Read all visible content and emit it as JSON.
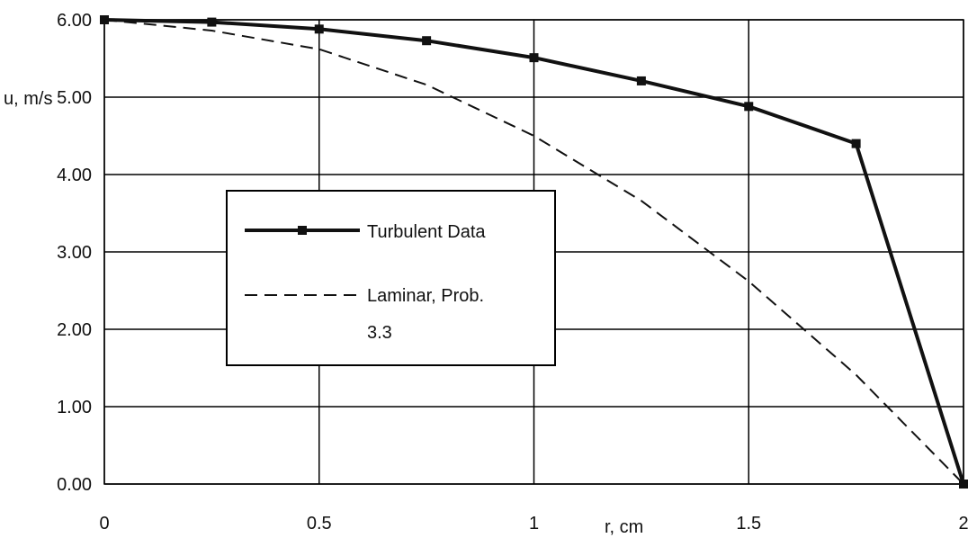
{
  "chart_data": {
    "type": "line",
    "title": "",
    "xlabel": "r, cm",
    "ylabel": "u, m/s",
    "xlim": [
      0,
      2
    ],
    "ylim": [
      0,
      6
    ],
    "x_ticks": [
      "0",
      "0.5",
      "1",
      "1.5",
      "2"
    ],
    "y_ticks": [
      "0.00",
      "1.00",
      "2.00",
      "3.00",
      "4.00",
      "5.00",
      "6.00"
    ],
    "grid": true,
    "legend_position": "center-left",
    "series": [
      {
        "name": "Turbulent Data",
        "style": "solid-with-square-markers",
        "color": "#111111",
        "x": [
          0,
          0.25,
          0.5,
          0.75,
          1.0,
          1.25,
          1.5,
          1.75,
          2.0
        ],
        "y": [
          6.0,
          5.97,
          5.88,
          5.73,
          5.51,
          5.21,
          4.88,
          4.4,
          0.0
        ]
      },
      {
        "name": "Laminar, Prob. 3.3",
        "legend_lines": [
          "Laminar, Prob.",
          "3.3"
        ],
        "style": "dashed",
        "color": "#111111",
        "x": [
          0,
          0.25,
          0.5,
          0.75,
          1.0,
          1.25,
          1.5,
          1.75,
          2.0
        ],
        "y": [
          6.0,
          5.86,
          5.62,
          5.16,
          4.5,
          3.66,
          2.62,
          1.41,
          0.0
        ]
      }
    ]
  }
}
